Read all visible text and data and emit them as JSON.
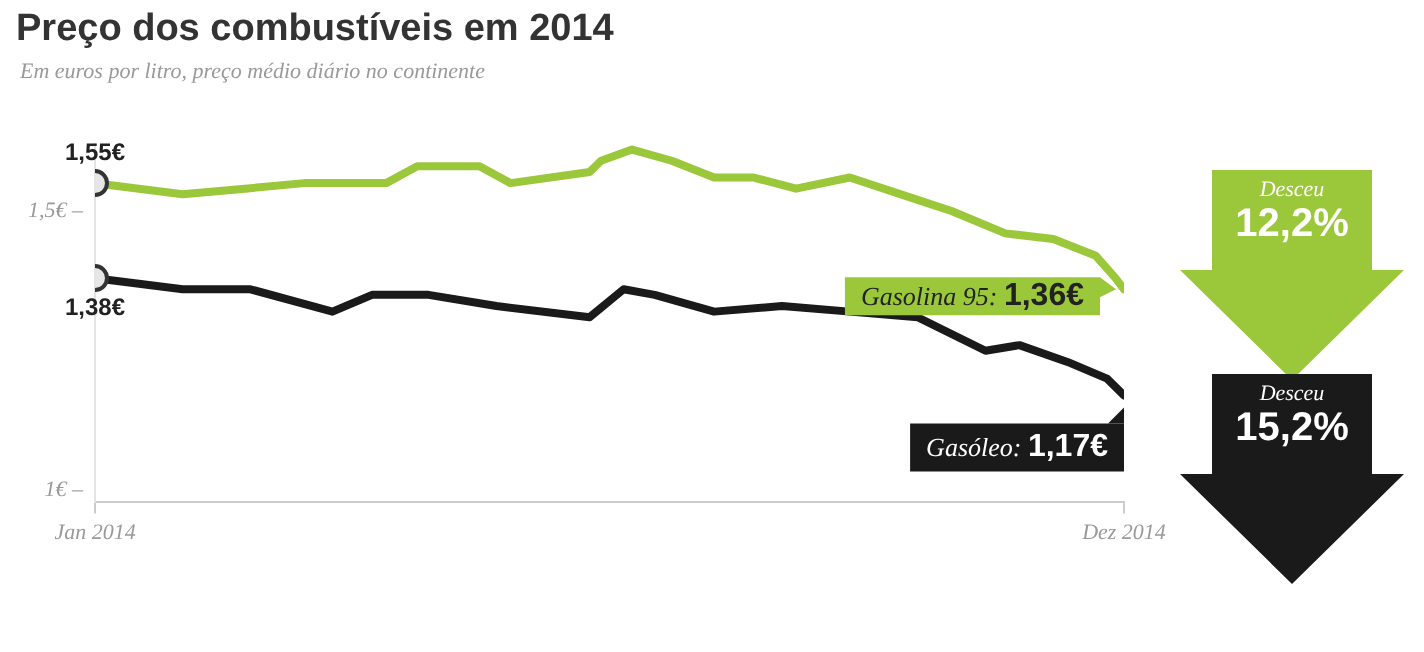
{
  "chart_data": {
    "type": "line",
    "title": "Preço dos combustíveis em 2014",
    "subtitle": "Em euros por litro, preço médio diário no continente",
    "xlim": [
      "2014-01-01",
      "2014-12-31"
    ],
    "xticks": [
      {
        "value": "2014-01-01",
        "label": "Jan 2014"
      },
      {
        "value": "2014-12-31",
        "label": "Dez 2014"
      }
    ],
    "ylim": [
      0.98,
      1.62
    ],
    "yticks": [
      {
        "value": 1,
        "label": "1€ –"
      },
      {
        "value": 1.5,
        "label": "1,5€ –"
      }
    ],
    "grid": false,
    "legend": false,
    "line_style": "solid",
    "series": [
      {
        "name": "Gasolina 95:",
        "color": "#9bc73a",
        "x": [
          "2014-01-01",
          "2014-02-01",
          "2014-02-23",
          "2014-03-16",
          "2014-04-14",
          "2014-04-25",
          "2014-05-17",
          "2014-05-28",
          "2014-06-25",
          "2014-06-29",
          "2014-07-10",
          "2014-07-24",
          "2014-08-08",
          "2014-08-22",
          "2014-09-06",
          "2014-09-25",
          "2014-10-19",
          "2014-10-31",
          "2014-11-19",
          "2014-12-06",
          "2014-12-21",
          "2014-12-28",
          "2014-12-31"
        ],
        "values": [
          1.55,
          1.53,
          1.54,
          1.55,
          1.55,
          1.58,
          1.58,
          1.55,
          1.57,
          1.59,
          1.61,
          1.59,
          1.56,
          1.56,
          1.54,
          1.56,
          1.52,
          1.5,
          1.46,
          1.45,
          1.42,
          1.38,
          1.36
        ],
        "value_labels": [
          "1,55€",
          null,
          null,
          null,
          null,
          null,
          null,
          null,
          null,
          null,
          null,
          null,
          null,
          null,
          null,
          null,
          null,
          null,
          null,
          null,
          null,
          null,
          "1,36€"
        ]
      },
      {
        "name": "Gasóleo:",
        "color": "#1a1a1a",
        "x": [
          "2014-01-01",
          "2014-02-01",
          "2014-02-25",
          "2014-03-26",
          "2014-04-09",
          "2014-04-29",
          "2014-05-23",
          "2014-06-25",
          "2014-07-07",
          "2014-07-18",
          "2014-08-08",
          "2014-09-01",
          "2014-09-25",
          "2014-10-19",
          "2014-11-12",
          "2014-11-24",
          "2014-12-11",
          "2014-12-25",
          "2014-12-31"
        ],
        "values": [
          1.38,
          1.36,
          1.36,
          1.32,
          1.35,
          1.35,
          1.33,
          1.31,
          1.36,
          1.35,
          1.32,
          1.33,
          1.32,
          1.31,
          1.25,
          1.26,
          1.23,
          1.2,
          1.17
        ],
        "value_labels": [
          "1,38€",
          null,
          null,
          null,
          null,
          null,
          null,
          null,
          null,
          null,
          null,
          null,
          null,
          null,
          null,
          null,
          null,
          null,
          "1,17€"
        ]
      }
    ],
    "annotations": [
      "Desceu 12,2%",
      "Desceu 15,2%"
    ]
  }
}
